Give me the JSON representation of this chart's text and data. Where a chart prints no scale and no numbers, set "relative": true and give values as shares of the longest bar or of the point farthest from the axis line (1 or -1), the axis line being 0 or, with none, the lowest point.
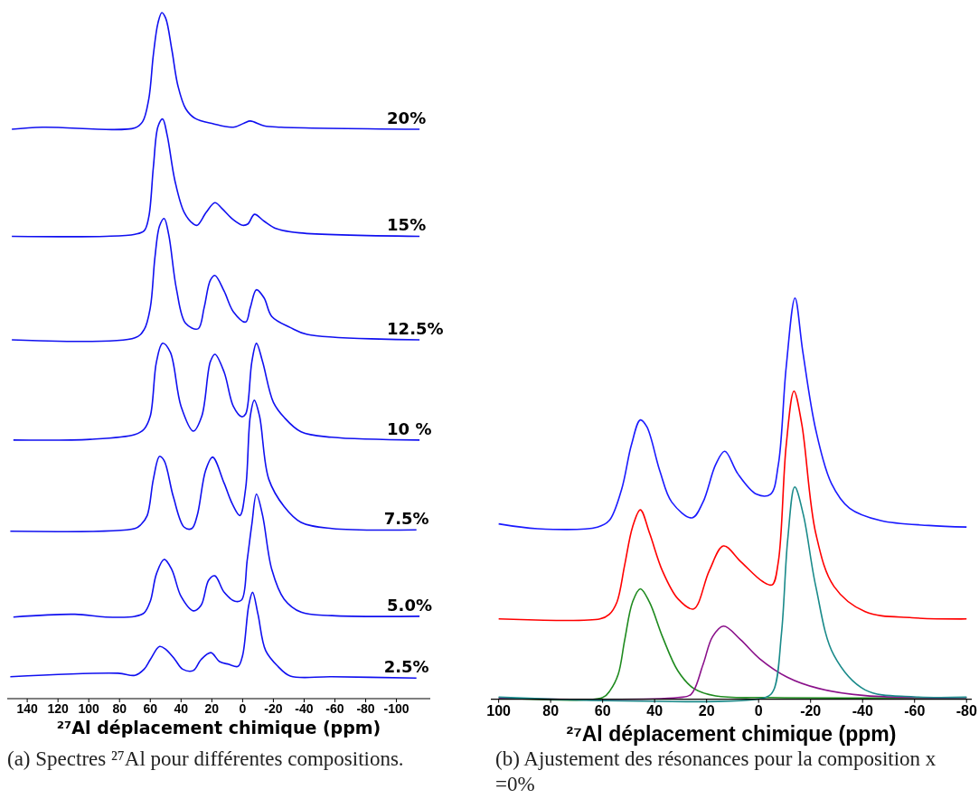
{
  "chart_data": [
    {
      "type": "line",
      "relative": true,
      "tick_labels": "x",
      "xlabel": "²⁷Al déplacement chimique (ppm)",
      "xlim": [
        153,
        -122
      ],
      "xticks": [
        140,
        120,
        100,
        80,
        60,
        40,
        20,
        0,
        -20,
        -40,
        -60,
        -80,
        -100
      ],
      "annotations": [
        "(a) Spectres ²⁷Al pour différentes compositions."
      ],
      "series": [
        {
          "name": "20%",
          "color": "#1010f0",
          "x": [
            150,
            130,
            70,
            65,
            61,
            58,
            55,
            52.5,
            50,
            46,
            42,
            37,
            31,
            19,
            6,
            -1,
            -5,
            -14,
            -25,
            -115
          ],
          "values": [
            0.83,
            0.833,
            0.832,
            0.841,
            0.874,
            0.939,
            0.985,
            1.0,
            0.992,
            0.946,
            0.893,
            0.86,
            0.846,
            0.838,
            0.833,
            0.839,
            0.842,
            0.835,
            0.833,
            0.83
          ]
        },
        {
          "name": "15%",
          "color": "#1010f0",
          "x": [
            150,
            89,
            70,
            64,
            61,
            58,
            55,
            52,
            49,
            44,
            38,
            32,
            29.5,
            23.6,
            18,
            13.6,
            6,
            0,
            -3.5,
            -7.7,
            -14,
            -22,
            -37,
            -115
          ],
          "values": [
            0.674,
            0.674,
            0.677,
            0.682,
            0.702,
            0.775,
            0.834,
            0.845,
            0.821,
            0.755,
            0.709,
            0.692,
            0.69,
            0.709,
            0.723,
            0.715,
            0.698,
            0.69,
            0.692,
            0.706,
            0.696,
            0.685,
            0.679,
            0.674
          ]
        },
        {
          "name": "12.5%",
          "color": "#1010f0",
          "x": [
            150,
            70,
            64,
            60,
            57,
            54,
            51,
            48,
            43,
            37,
            29,
            25,
            21,
            18,
            12,
            6,
            -2,
            -5,
            -9,
            -14,
            -19,
            -31,
            -42,
            -115
          ],
          "values": [
            0.523,
            0.526,
            0.538,
            0.57,
            0.643,
            0.689,
            0.7,
            0.676,
            0.597,
            0.547,
            0.539,
            0.57,
            0.61,
            0.617,
            0.594,
            0.564,
            0.549,
            0.57,
            0.596,
            0.584,
            0.557,
            0.541,
            0.531,
            0.523
          ]
        },
        {
          "name": "10 %",
          "color": "#1010f0",
          "x": [
            149,
            99,
            70,
            64,
            60,
            56,
            52,
            47,
            40,
            32,
            26.5,
            21,
            18,
            12,
            6,
            0.6,
            -2,
            -6,
            -9,
            -13,
            -20,
            -27,
            -38,
            -58,
            -115
          ],
          "values": [
            0.377,
            0.378,
            0.385,
            0.393,
            0.412,
            0.491,
            0.518,
            0.505,
            0.426,
            0.39,
            0.412,
            0.491,
            0.502,
            0.476,
            0.426,
            0.411,
            0.415,
            0.491,
            0.518,
            0.491,
            0.432,
            0.41,
            0.389,
            0.381,
            0.377
          ]
        },
        {
          "name": "7.5%",
          "color": "#1010f0",
          "x": [
            151,
            70,
            66,
            62,
            58,
            54,
            51,
            45,
            38,
            33,
            29.5,
            24,
            19.5,
            12,
            6.5,
            1.8,
            -2,
            -5,
            -7.6,
            -11,
            -17,
            -27,
            -38,
            -58,
            -113
          ],
          "values": [
            0.244,
            0.248,
            0.254,
            0.267,
            0.32,
            0.353,
            0.347,
            0.294,
            0.25,
            0.248,
            0.267,
            0.333,
            0.352,
            0.314,
            0.283,
            0.267,
            0.307,
            0.412,
            0.435,
            0.412,
            0.32,
            0.28,
            0.257,
            0.248,
            0.246
          ]
        },
        {
          "name": "5.0%",
          "color": "#1010f0",
          "x": [
            149,
            109,
            89,
            70,
            64,
            60,
            56,
            51,
            46,
            40,
            32,
            27,
            22,
            18,
            12,
            5,
            0.6,
            -3,
            -6,
            -9,
            -13,
            -19,
            -27,
            -38,
            -58,
            -115
          ],
          "values": [
            0.119,
            0.123,
            0.119,
            0.12,
            0.125,
            0.142,
            0.182,
            0.203,
            0.188,
            0.149,
            0.128,
            0.136,
            0.173,
            0.179,
            0.155,
            0.142,
            0.144,
            0.202,
            0.254,
            0.298,
            0.267,
            0.188,
            0.145,
            0.126,
            0.121,
            0.12
          ]
        },
        {
          "name": "2.5%",
          "color": "#1010f0",
          "x": [
            151,
            81,
            70,
            64,
            60,
            54,
            50,
            44,
            39,
            32,
            27,
            20.6,
            15,
            9,
            3,
            0,
            -4,
            -6.5,
            -10,
            -15,
            -23,
            -31,
            -58,
            -113
          ],
          "values": [
            0.032,
            0.037,
            0.034,
            0.043,
            0.057,
            0.076,
            0.072,
            0.057,
            0.043,
            0.041,
            0.057,
            0.067,
            0.054,
            0.05,
            0.047,
            0.063,
            0.136,
            0.155,
            0.123,
            0.07,
            0.047,
            0.033,
            0.032,
            0.03
          ]
        }
      ]
    },
    {
      "type": "line",
      "relative": true,
      "tick_labels": "x",
      "xlabel": "²⁷Al déplacement chimique (ppm)",
      "xlim": [
        103,
        -82
      ],
      "xticks": [
        100,
        80,
        60,
        40,
        20,
        0,
        -20,
        -40,
        -60,
        -80
      ],
      "annotations": [
        "(b) Ajustement des résonances pour la composition x =0%"
      ],
      "series": [
        {
          "color": "#1a1aff",
          "x": [
            100,
            85,
            62,
            57.5,
            52.7,
            49,
            45.5,
            43,
            38,
            33.4,
            25.6,
            21.4,
            16.5,
            13,
            8,
            0.8,
            -4.6,
            -7.6,
            -10.6,
            -14,
            -17,
            -22,
            -28,
            -35,
            -47,
            -65.5,
            -80
          ],
          "values": [
            0.437,
            0.425,
            0.429,
            0.445,
            0.523,
            0.632,
            0.696,
            0.679,
            0.569,
            0.491,
            0.452,
            0.491,
            0.585,
            0.618,
            0.562,
            0.511,
            0.511,
            0.585,
            0.827,
            1.0,
            0.866,
            0.671,
            0.538,
            0.476,
            0.445,
            0.433,
            0.429
          ]
        },
        {
          "color": "#ff0000",
          "x": [
            100,
            61,
            57.5,
            54.5,
            51.5,
            48.5,
            45.5,
            41.9,
            37,
            31,
            25,
            19,
            13.5,
            6.9,
            -1.6,
            -5.2,
            -7.6,
            -10.6,
            -13.6,
            -16.6,
            -22,
            -29,
            -41,
            -59,
            -80
          ],
          "values": [
            0.2,
            0.2,
            0.211,
            0.242,
            0.335,
            0.429,
            0.472,
            0.413,
            0.32,
            0.25,
            0.225,
            0.32,
            0.382,
            0.343,
            0.293,
            0.285,
            0.343,
            0.632,
            0.768,
            0.686,
            0.413,
            0.281,
            0.218,
            0.203,
            0.2
          ]
        },
        {
          "color": "#1e8a1e",
          "x": [
            100,
            60,
            57,
            54,
            51.5,
            48.5,
            45.5,
            42,
            37,
            31,
            25,
            16.5,
            -5,
            -80
          ],
          "values": [
            0.004,
            0.004,
            0.023,
            0.062,
            0.148,
            0.242,
            0.275,
            0.242,
            0.156,
            0.07,
            0.027,
            0.008,
            0.004,
            0.004
          ]
        },
        {
          "color": "#8a108a",
          "x": [
            100,
            31,
            26,
            21.4,
            17.7,
            13.5,
            6.9,
            -0.4,
            -11,
            -23,
            -41,
            -80
          ],
          "values": [
            0.002,
            0.004,
            0.012,
            0.086,
            0.156,
            0.182,
            0.148,
            0.101,
            0.055,
            0.027,
            0.009,
            0.004
          ]
        },
        {
          "color": "#1a8a8a",
          "x": [
            100,
            -2.8,
            -5.8,
            -8.8,
            -11.2,
            -13.9,
            -17.2,
            -22,
            -29,
            -41,
            -59.5,
            -80
          ],
          "values": [
            0.005,
            0.005,
            0.023,
            0.164,
            0.398,
            0.529,
            0.46,
            0.281,
            0.109,
            0.023,
            0.006,
            0.005
          ]
        }
      ]
    }
  ]
}
